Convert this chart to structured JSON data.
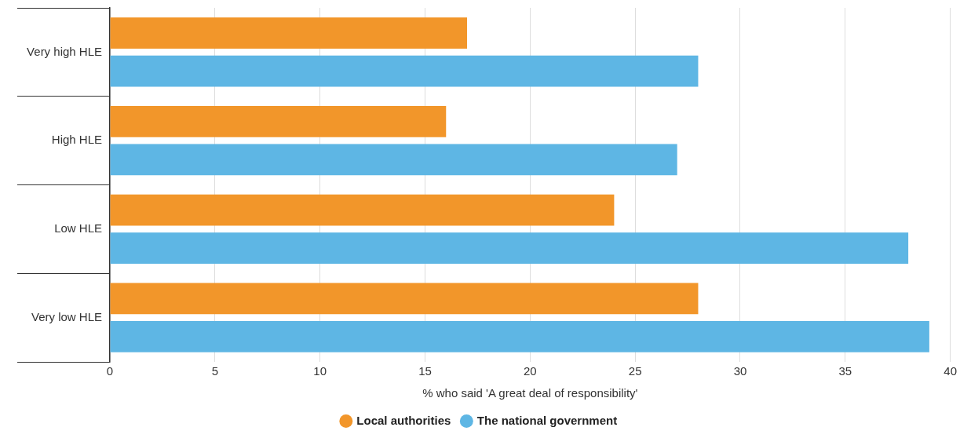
{
  "chart_data": {
    "type": "bar",
    "orientation": "horizontal",
    "xlabel": "% who said 'A great deal of responsibility'",
    "categories": [
      "Very high HLE",
      "High HLE",
      "Low HLE",
      "Very low HLE"
    ],
    "series": [
      {
        "name": "Local authorities",
        "color": "#f2962a",
        "values": [
          17,
          16,
          24,
          28
        ]
      },
      {
        "name": "The national government",
        "color": "#5eb6e4",
        "values": [
          28,
          27,
          38,
          39
        ]
      }
    ],
    "xlim": [
      0,
      40
    ],
    "xticks": [
      0,
      5,
      10,
      15,
      20,
      25,
      30,
      35,
      40
    ],
    "grid": "x",
    "legend": "bottom"
  }
}
